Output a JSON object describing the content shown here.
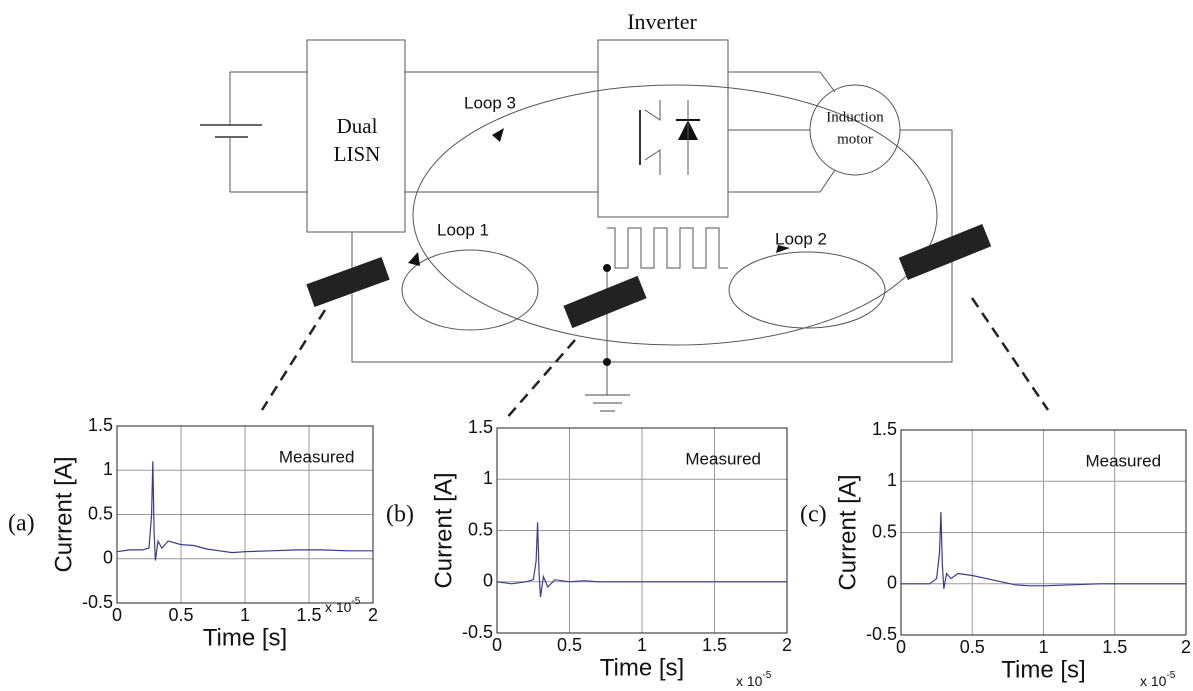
{
  "diagram": {
    "inverter": "Inverter",
    "lisn": [
      "Dual",
      "LISN"
    ],
    "motor": [
      "Induction",
      "motor"
    ],
    "loops": [
      "Loop 3",
      "Loop 1",
      "Loop 2"
    ]
  },
  "chart_data": [
    {
      "type": "line",
      "panel": "(a)",
      "annotation": "Measured",
      "x_label": "Time [s]",
      "y_label": "Current [A]",
      "x_multiplier": "x 10",
      "x_exponent": "-5",
      "xlim": [
        0,
        2
      ],
      "ylim": [
        -0.5,
        1.5
      ],
      "xticks": [
        0,
        0.5,
        1,
        1.5,
        2
      ],
      "yticks": [
        -0.5,
        0,
        0.5,
        1,
        1.5
      ],
      "grid": true,
      "color": "#3a3a8c",
      "x": [
        0,
        0.1,
        0.2,
        0.25,
        0.27,
        0.28,
        0.29,
        0.3,
        0.32,
        0.35,
        0.4,
        0.5,
        0.6,
        0.7,
        0.8,
        0.9,
        1.0,
        1.2,
        1.4,
        1.6,
        1.8,
        2.0
      ],
      "values": [
        0.08,
        0.1,
        0.1,
        0.12,
        0.5,
        1.1,
        0.3,
        -0.02,
        0.2,
        0.12,
        0.2,
        0.16,
        0.15,
        0.11,
        0.09,
        0.07,
        0.08,
        0.09,
        0.1,
        0.1,
        0.09,
        0.09
      ]
    },
    {
      "type": "line",
      "panel": "(b)",
      "annotation": "Measured",
      "x_label": "Time [s]",
      "y_label": "Current [A]",
      "x_multiplier": "x 10",
      "x_exponent": "-5",
      "xlim": [
        0,
        2
      ],
      "ylim": [
        -0.5,
        1.5
      ],
      "xticks": [
        0,
        0.5,
        1,
        1.5,
        2
      ],
      "yticks": [
        -0.5,
        0,
        0.5,
        1,
        1.5
      ],
      "grid": true,
      "color": "#3a3a8c",
      "x": [
        0,
        0.1,
        0.2,
        0.25,
        0.27,
        0.28,
        0.29,
        0.3,
        0.32,
        0.35,
        0.4,
        0.5,
        0.6,
        0.7,
        0.8,
        0.9,
        1.0,
        1.2,
        1.4,
        1.6,
        1.8,
        2.0
      ],
      "values": [
        0,
        -0.02,
        0,
        0.02,
        0.2,
        0.58,
        0.1,
        -0.15,
        0.05,
        -0.05,
        0.02,
        0,
        0.01,
        0,
        0,
        0,
        0,
        0,
        0,
        0,
        0,
        0
      ]
    },
    {
      "type": "line",
      "panel": "(c)",
      "annotation": "Measured",
      "x_label": "Time [s]",
      "y_label": "Current [A]",
      "x_multiplier": "x 10",
      "x_exponent": "-5",
      "xlim": [
        0,
        2
      ],
      "ylim": [
        -0.5,
        1.5
      ],
      "xticks": [
        0,
        0.5,
        1,
        1.5,
        2
      ],
      "yticks": [
        -0.5,
        0,
        0.5,
        1,
        1.5
      ],
      "grid": true,
      "color": "#3a3a8c",
      "x": [
        0,
        0.1,
        0.2,
        0.25,
        0.27,
        0.28,
        0.29,
        0.3,
        0.32,
        0.35,
        0.4,
        0.5,
        0.6,
        0.7,
        0.8,
        0.9,
        1.0,
        1.2,
        1.4,
        1.6,
        1.8,
        2.0
      ],
      "values": [
        0,
        0,
        0,
        0.05,
        0.3,
        0.7,
        0.2,
        -0.05,
        0.1,
        0.05,
        0.1,
        0.08,
        0.05,
        0.02,
        -0.01,
        -0.02,
        -0.02,
        -0.01,
        0,
        0,
        0,
        0
      ]
    }
  ]
}
